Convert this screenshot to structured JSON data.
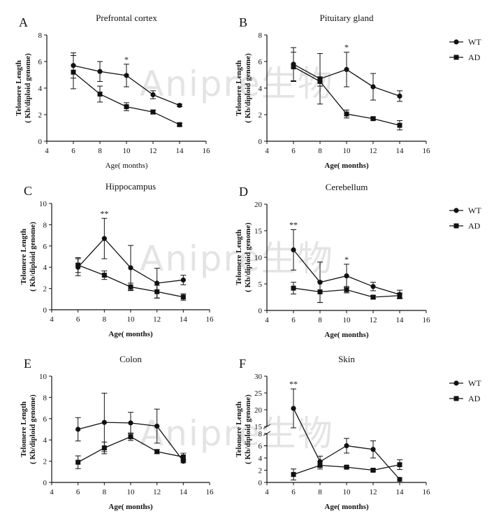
{
  "watermark": "Anipre生物",
  "legend": {
    "wt": "WT",
    "ad": "AD"
  },
  "chart_data": [
    {
      "id": "A",
      "type": "line",
      "title": "Prefrontal cortex",
      "xlabel": "Age( months)",
      "xlabel_bold": false,
      "ylabel": [
        "Telomere Length",
        "( Kb/diploid genome)"
      ],
      "xlim": [
        4,
        16
      ],
      "xticks": [
        4,
        6,
        8,
        10,
        12,
        14,
        16
      ],
      "ylim": [
        0,
        8
      ],
      "yticks": [
        0,
        2,
        4,
        6,
        8
      ],
      "x": [
        6,
        8,
        10,
        12,
        14
      ],
      "series": [
        {
          "name": "WT",
          "marker": "circle",
          "values": [
            5.7,
            5.25,
            4.95,
            3.5,
            2.7
          ],
          "errors": [
            0.95,
            0.75,
            0.85,
            0.3,
            0.1
          ]
        },
        {
          "name": "AD",
          "marker": "square",
          "values": [
            5.2,
            3.55,
            2.6,
            2.2,
            1.25
          ],
          "errors": [
            1.25,
            0.6,
            0.3,
            0.15,
            0.1
          ]
        }
      ],
      "significance": [
        {
          "x": 10,
          "label": "*"
        }
      ]
    },
    {
      "id": "B",
      "type": "line",
      "title": "Pituitary gland",
      "xlabel": "Age( months)",
      "xlabel_bold": true,
      "ylabel": [
        "Telomere Length",
        "( Kb/diploid genome)"
      ],
      "xlim": [
        4,
        16
      ],
      "xticks": [
        4,
        6,
        8,
        10,
        12,
        14,
        16
      ],
      "ylim": [
        0,
        8
      ],
      "yticks": [
        0,
        2,
        4,
        6,
        8
      ],
      "x": [
        6,
        8,
        10,
        12,
        14
      ],
      "series": [
        {
          "name": "WT",
          "marker": "circle",
          "values": [
            5.8,
            4.7,
            5.4,
            4.1,
            3.4
          ],
          "errors": [
            1.25,
            1.9,
            1.3,
            1.0,
            0.4
          ]
        },
        {
          "name": "AD",
          "marker": "square",
          "values": [
            5.6,
            4.5,
            2.05,
            1.7,
            1.2
          ],
          "errors": [
            1.1,
            0.35,
            0.3,
            0.1,
            0.35
          ]
        }
      ],
      "significance": [
        {
          "x": 10,
          "label": "*"
        }
      ]
    },
    {
      "id": "C",
      "type": "line",
      "title": "Hippocampus",
      "xlabel": "Age( months)",
      "xlabel_bold": true,
      "ylabel": [
        "Telomere Length",
        "( Kb/diploid genome)"
      ],
      "xlim": [
        4,
        16
      ],
      "xticks": [
        4,
        6,
        8,
        10,
        12,
        14,
        16
      ],
      "ylim": [
        0,
        10
      ],
      "yticks": [
        0,
        2,
        4,
        6,
        8,
        10
      ],
      "x": [
        6,
        8,
        10,
        12,
        14
      ],
      "series": [
        {
          "name": "WT",
          "marker": "circle",
          "values": [
            4.0,
            6.7,
            3.95,
            2.5,
            2.8
          ],
          "errors": [
            0.8,
            1.9,
            2.1,
            1.4,
            0.45
          ]
        },
        {
          "name": "AD",
          "marker": "square",
          "values": [
            4.2,
            3.25,
            2.15,
            1.7,
            1.2
          ],
          "errors": [
            0.7,
            0.4,
            0.35,
            0.6,
            0.3
          ]
        }
      ],
      "significance": [
        {
          "x": 8,
          "label": "**"
        }
      ]
    },
    {
      "id": "D",
      "type": "line",
      "title": "Cerebellum",
      "xlabel": "Age( months)",
      "xlabel_bold": true,
      "ylabel": [
        "Telomere Length",
        "( Kb/diploid genome)"
      ],
      "xlim": [
        4,
        16
      ],
      "xticks": [
        4,
        6,
        8,
        10,
        12,
        14,
        16
      ],
      "ylim": [
        0,
        20
      ],
      "yticks": [
        0,
        5,
        10,
        15,
        20
      ],
      "x": [
        6,
        8,
        10,
        12,
        14
      ],
      "series": [
        {
          "name": "WT",
          "marker": "circle",
          "values": [
            11.4,
            5.3,
            6.5,
            4.5,
            3.0
          ],
          "errors": [
            3.8,
            3.8,
            2.2,
            0.8,
            0.8
          ]
        },
        {
          "name": "AD",
          "marker": "square",
          "values": [
            4.2,
            3.5,
            3.9,
            2.5,
            2.8
          ],
          "errors": [
            1.1,
            2.0,
            0.6,
            0.3,
            0.5
          ]
        }
      ],
      "significance": [
        {
          "x": 6,
          "label": "**"
        },
        {
          "x": 10,
          "label": "*"
        }
      ]
    },
    {
      "id": "E",
      "type": "line",
      "title": "Colon",
      "xlabel": "Age( months)",
      "xlabel_bold": true,
      "ylabel": [
        "Telomere Length",
        "( Kb/diploid genome)"
      ],
      "xlim": [
        4,
        16
      ],
      "xticks": [
        4,
        6,
        8,
        10,
        12,
        14,
        16
      ],
      "ylim": [
        0,
        10
      ],
      "yticks": [
        0,
        2,
        4,
        6,
        8,
        10
      ],
      "x": [
        6,
        8,
        10,
        12,
        14
      ],
      "series": [
        {
          "name": "WT",
          "marker": "circle",
          "values": [
            5.0,
            5.65,
            5.6,
            5.3,
            2.0
          ],
          "errors": [
            1.1,
            2.75,
            1.0,
            1.6,
            0.15
          ]
        },
        {
          "name": "AD",
          "marker": "square",
          "values": [
            1.9,
            3.25,
            4.3,
            2.9,
            2.4
          ],
          "errors": [
            0.6,
            0.55,
            0.35,
            0.2,
            0.35
          ]
        }
      ],
      "significance": []
    },
    {
      "id": "F",
      "type": "line",
      "title": "Skin",
      "xlabel": "Age( months)",
      "xlabel_bold": true,
      "ylabel": [
        "Telomere Length",
        "( Kb/diploid genome)"
      ],
      "xlim": [
        4,
        16
      ],
      "xticks": [
        4,
        6,
        8,
        10,
        12,
        14,
        16
      ],
      "ylim": [
        0,
        30
      ],
      "broken_axis": [
        8,
        15
      ],
      "yticks": [
        0,
        2,
        4,
        6,
        8,
        15,
        20,
        25,
        30
      ],
      "x": [
        6,
        8,
        10,
        12,
        14
      ],
      "series": [
        {
          "name": "WT",
          "marker": "circle",
          "values": [
            20.4,
            3.4,
            6.0,
            5.4,
            0.5
          ],
          "errors": [
            5.8,
            0.9,
            1.2,
            1.4,
            0.3
          ]
        },
        {
          "name": "AD",
          "marker": "square",
          "values": [
            1.3,
            2.8,
            2.5,
            2.0,
            2.9
          ],
          "errors": [
            0.9,
            0.6,
            0.2,
            0.2,
            0.8
          ]
        }
      ],
      "significance": [
        {
          "x": 6,
          "label": "**"
        }
      ]
    }
  ]
}
